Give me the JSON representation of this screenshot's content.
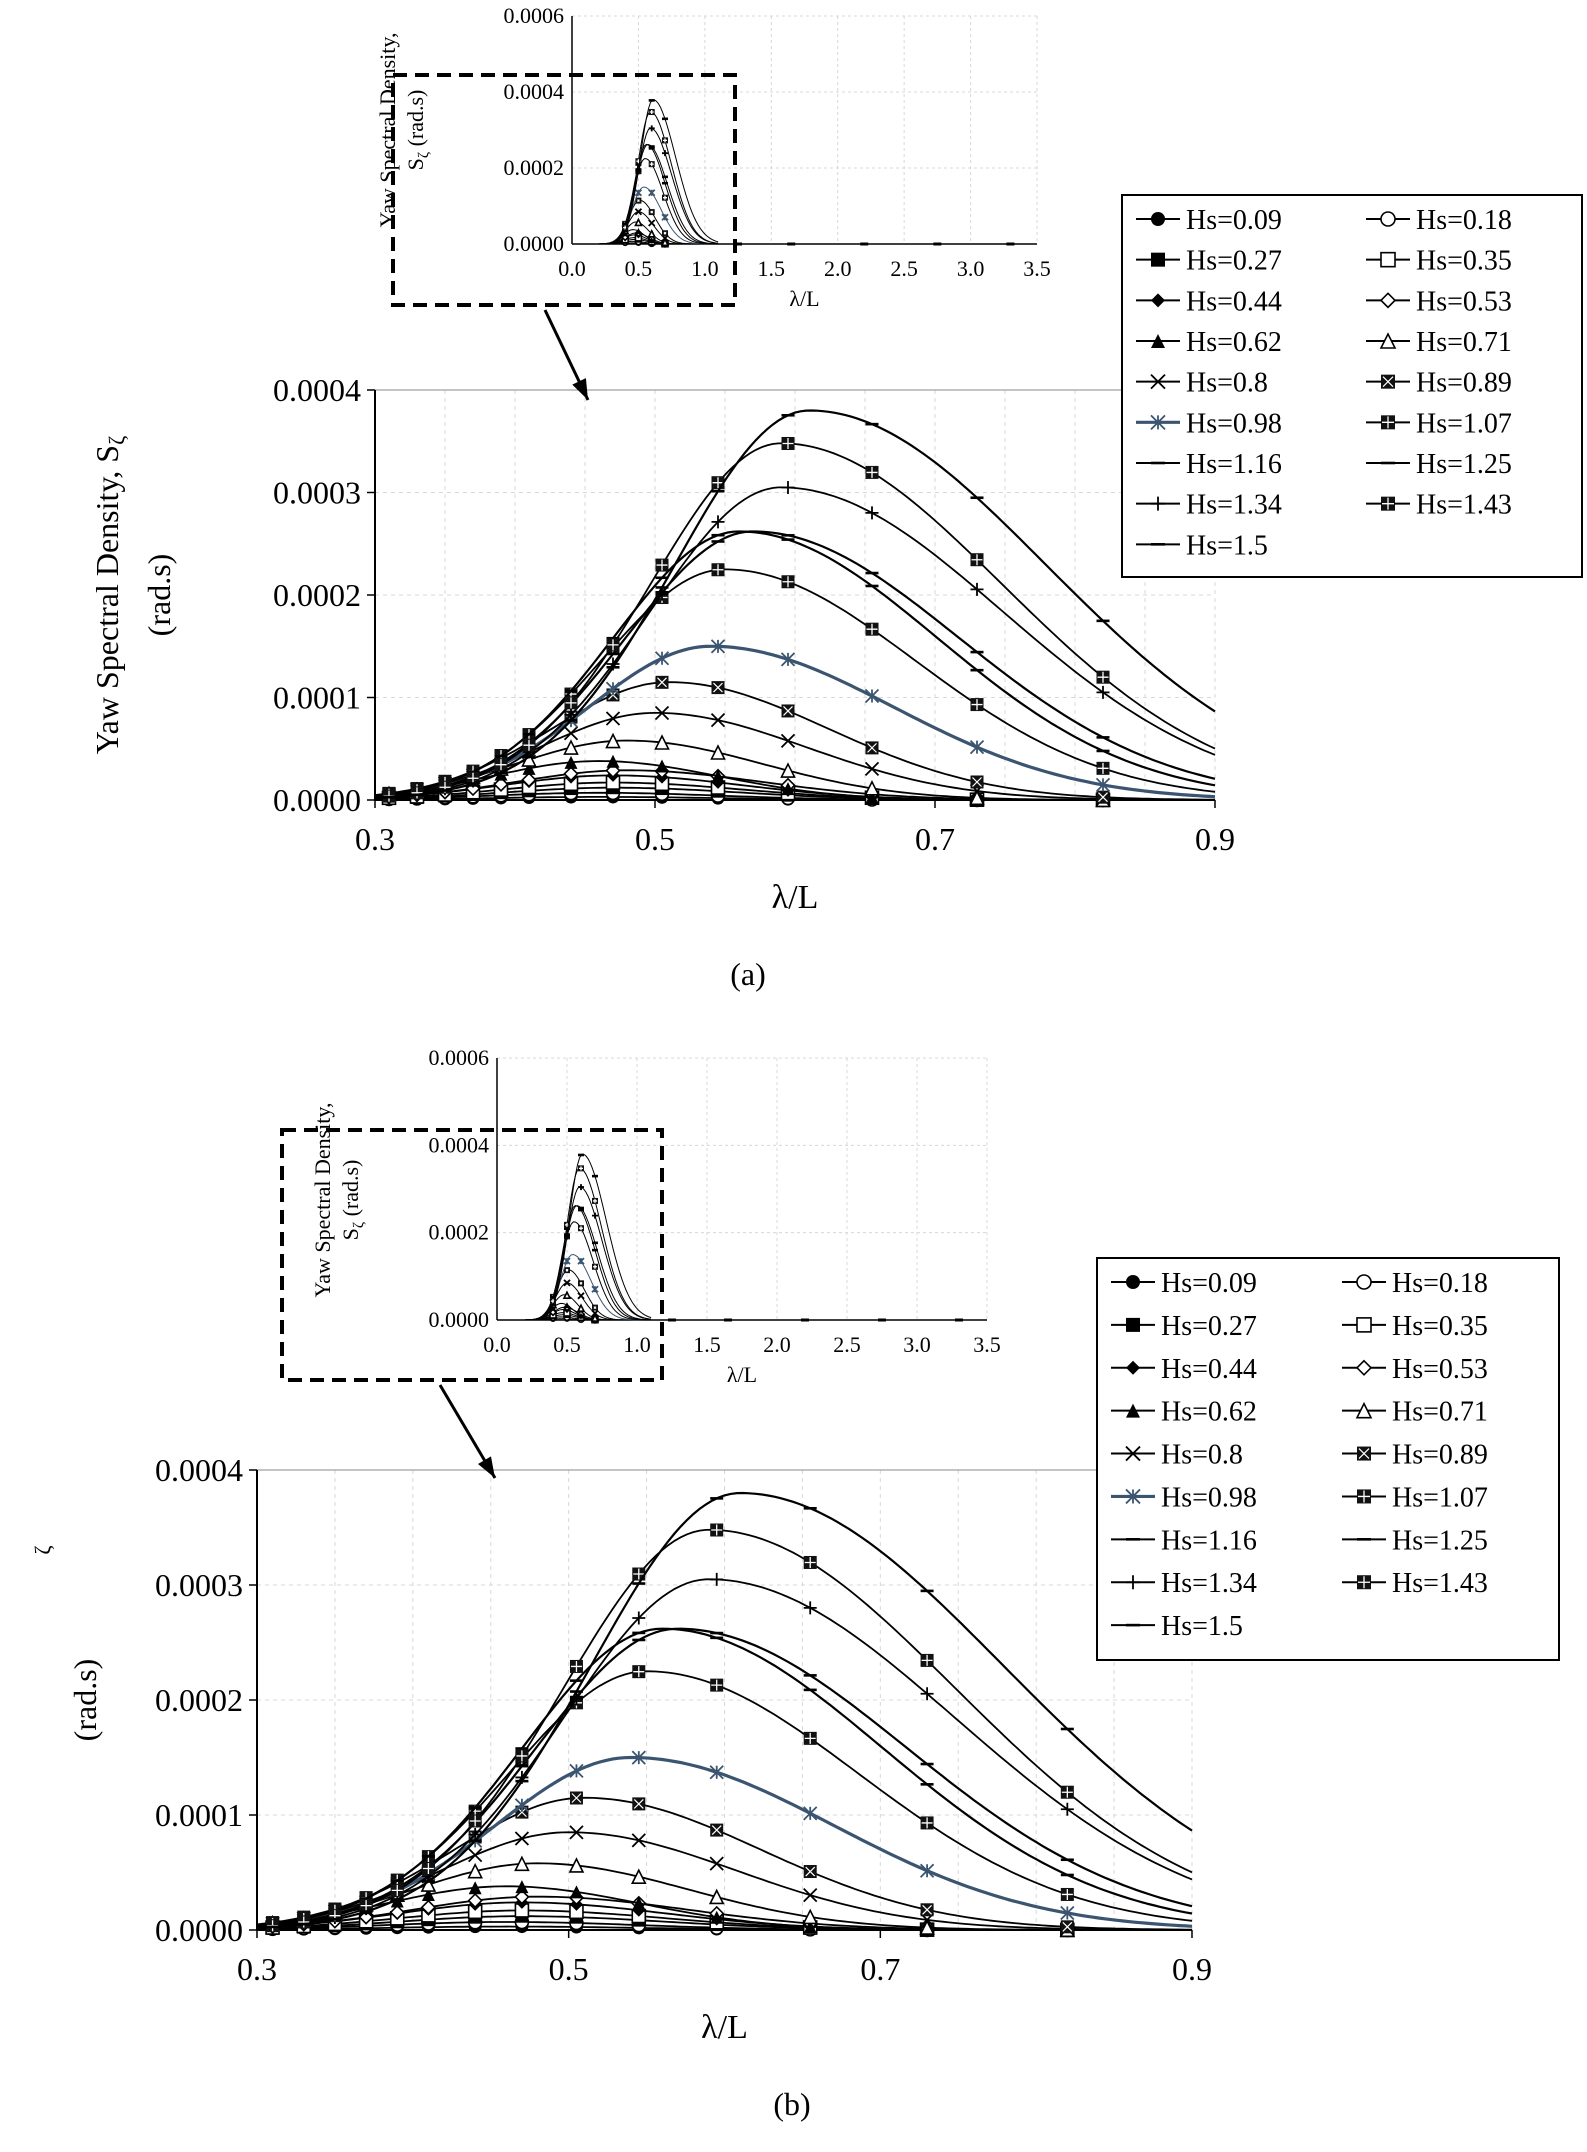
{
  "chart_data": [
    {
      "panel_label": "(a)",
      "type": "line",
      "xlabel": "λ/L",
      "ylabel_line1": "Yaw Spectral Density, S",
      "ylabel_sub": "ζ",
      "ylabel_line2": "(rad.s)",
      "xlim": [
        0.3,
        0.9
      ],
      "ylim": [
        0,
        0.0004
      ],
      "xticks": [
        "0.3",
        "0.5",
        "0.7",
        "0.9"
      ],
      "yticks": [
        "0.0000",
        "0.0001",
        "0.0002",
        "0.0003",
        "0.0004"
      ],
      "grid": true,
      "legend_position": "top-right",
      "series": [
        {
          "name": "Hs=0.09",
          "marker": "filled-circle",
          "peak_x": 0.46,
          "peak_y": 3e-06
        },
        {
          "name": "Hs=0.18",
          "marker": "open-circle",
          "peak_x": 0.46,
          "peak_y": 7e-06
        },
        {
          "name": "Hs=0.27",
          "marker": "filled-square",
          "peak_x": 0.47,
          "peak_y": 1.2e-05
        },
        {
          "name": "Hs=0.35",
          "marker": "open-square",
          "peak_x": 0.47,
          "peak_y": 1.7e-05
        },
        {
          "name": "Hs=0.44",
          "marker": "filled-diamond",
          "peak_x": 0.47,
          "peak_y": 2.4e-05
        },
        {
          "name": "Hs=0.53",
          "marker": "open-diamond",
          "peak_x": 0.48,
          "peak_y": 2.9e-05
        },
        {
          "name": "Hs=0.62",
          "marker": "filled-triangle",
          "peak_x": 0.46,
          "peak_y": 3.8e-05
        },
        {
          "name": "Hs=0.71",
          "marker": "open-triangle",
          "peak_x": 0.48,
          "peak_y": 5.8e-05
        },
        {
          "name": "Hs=0.8",
          "marker": "x",
          "peak_x": 0.5,
          "peak_y": 8.5e-05
        },
        {
          "name": "Hs=0.89",
          "marker": "x-square",
          "peak_x": 0.51,
          "peak_y": 0.000115
        },
        {
          "name": "Hs=0.98",
          "marker": "star",
          "color": "#3b5570",
          "peak_x": 0.54,
          "peak_y": 0.00015
        },
        {
          "name": "Hs=1.07",
          "marker": "boxed-square",
          "peak_x": 0.55,
          "peak_y": 0.000225
        },
        {
          "name": "Hs=1.16",
          "marker": "dash",
          "peak_x": 0.57,
          "peak_y": 0.000262
        },
        {
          "name": "Hs=1.25",
          "marker": "dash",
          "peak_x": 0.56,
          "peak_y": 0.000262
        },
        {
          "name": "Hs=1.34",
          "marker": "plus",
          "peak_x": 0.59,
          "peak_y": 0.000305
        },
        {
          "name": "Hs=1.43",
          "marker": "boxed-square",
          "peak_x": 0.59,
          "peak_y": 0.000348
        },
        {
          "name": "Hs=1.5",
          "marker": "dash",
          "peak_x": 0.61,
          "peak_y": 0.00038
        }
      ],
      "inset": {
        "xlabel": "λ/L",
        "ylabel_line1": "Yaw Spectral Density,",
        "ylabel_line2": "S",
        "ylabel_sub": "ζ",
        "ylabel_unit": " (rad.s)",
        "xlim": [
          0,
          3.5
        ],
        "ylim": [
          0,
          0.0006
        ],
        "xticks": [
          "0.0",
          "0.5",
          "1.0",
          "1.5",
          "2.0",
          "2.5",
          "3.0",
          "3.5"
        ],
        "yticks": [
          "0.0000",
          "0.0002",
          "0.0004",
          "0.0006"
        ]
      }
    },
    {
      "panel_label": "(b)",
      "type": "line",
      "xlabel": "λ/L",
      "ylabel_line1": "",
      "ylabel_sub": "ζ",
      "ylabel_line2": "(rad.s)",
      "xlim": [
        0.3,
        0.9
      ],
      "ylim": [
        0,
        0.0004
      ],
      "xticks": [
        "0.3",
        "0.5",
        "0.7",
        "0.9"
      ],
      "yticks": [
        "0.0000",
        "0.0001",
        "0.0002",
        "0.0003",
        "0.0004"
      ],
      "grid": true,
      "legend_position": "top-right",
      "series": [
        {
          "name": "Hs=0.09",
          "marker": "filled-circle",
          "peak_x": 0.46,
          "peak_y": 3e-06
        },
        {
          "name": "Hs=0.18",
          "marker": "open-circle",
          "peak_x": 0.46,
          "peak_y": 7e-06
        },
        {
          "name": "Hs=0.27",
          "marker": "filled-square",
          "peak_x": 0.47,
          "peak_y": 1.2e-05
        },
        {
          "name": "Hs=0.35",
          "marker": "open-square",
          "peak_x": 0.47,
          "peak_y": 1.7e-05
        },
        {
          "name": "Hs=0.44",
          "marker": "filled-diamond",
          "peak_x": 0.47,
          "peak_y": 2.4e-05
        },
        {
          "name": "Hs=0.53",
          "marker": "open-diamond",
          "peak_x": 0.48,
          "peak_y": 2.9e-05
        },
        {
          "name": "Hs=0.62",
          "marker": "filled-triangle",
          "peak_x": 0.46,
          "peak_y": 3.8e-05
        },
        {
          "name": "Hs=0.71",
          "marker": "open-triangle",
          "peak_x": 0.48,
          "peak_y": 5.8e-05
        },
        {
          "name": "Hs=0.8",
          "marker": "x",
          "peak_x": 0.5,
          "peak_y": 8.5e-05
        },
        {
          "name": "Hs=0.89",
          "marker": "x-square",
          "peak_x": 0.51,
          "peak_y": 0.000115
        },
        {
          "name": "Hs=0.98",
          "marker": "star",
          "color": "#3b5570",
          "peak_x": 0.54,
          "peak_y": 0.00015
        },
        {
          "name": "Hs=1.07",
          "marker": "boxed-square",
          "peak_x": 0.55,
          "peak_y": 0.000225
        },
        {
          "name": "Hs=1.16",
          "marker": "dash",
          "peak_x": 0.57,
          "peak_y": 0.000262
        },
        {
          "name": "Hs=1.25",
          "marker": "dash",
          "peak_x": 0.56,
          "peak_y": 0.000262
        },
        {
          "name": "Hs=1.34",
          "marker": "plus",
          "peak_x": 0.59,
          "peak_y": 0.000305
        },
        {
          "name": "Hs=1.43",
          "marker": "boxed-square",
          "peak_x": 0.59,
          "peak_y": 0.000348
        },
        {
          "name": "Hs=1.5",
          "marker": "dash",
          "peak_x": 0.61,
          "peak_y": 0.00038
        }
      ],
      "inset": {
        "xlabel": "λ/L",
        "ylabel_line1": "Yaw Spectral Density,",
        "ylabel_line2": "S",
        "ylabel_sub": "ζ",
        "ylabel_unit": " (rad.s)",
        "xlim": [
          0,
          3.5
        ],
        "ylim": [
          0,
          0.0006
        ],
        "xticks": [
          "0.0",
          "0.5",
          "1.0",
          "1.5",
          "2.0",
          "2.5",
          "3.0",
          "3.5"
        ],
        "yticks": [
          "0.0000",
          "0.0002",
          "0.0004",
          "0.0006"
        ]
      }
    }
  ]
}
